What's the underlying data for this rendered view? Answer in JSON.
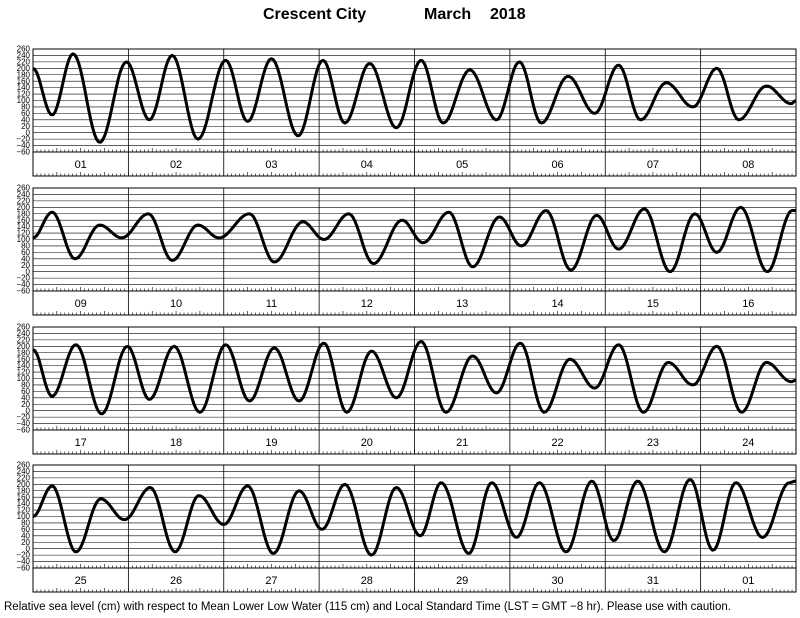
{
  "title": {
    "location": "Crescent City",
    "month": "March",
    "year": "2018"
  },
  "caption": "Relative sea level (cm) with respect to Mean Lower Low Water (115 cm) and Local Standard Time (LST = GMT −8 hr). Please use with caution.",
  "chart_data": {
    "type": "line",
    "ylim": [
      -60,
      260
    ],
    "y_ticks": [
      -60,
      -40,
      -20,
      0,
      20,
      40,
      60,
      80,
      100,
      120,
      140,
      160,
      180,
      200,
      220,
      240,
      260
    ],
    "y_tick_labels": [
      "−60",
      "−40",
      "−20",
      "0",
      "20",
      "40",
      "60",
      "80",
      "100",
      "120",
      "140",
      "160",
      "180",
      "200",
      "220",
      "240",
      "260"
    ],
    "panels": [
      {
        "day_labels": [
          "01",
          "02",
          "03",
          "04",
          "05",
          "06",
          "07",
          "08"
        ],
        "extrema": [
          [
            0.0,
            200
          ],
          [
            0.2,
            55
          ],
          [
            0.42,
            245
          ],
          [
            0.7,
            -30
          ],
          [
            0.98,
            220
          ],
          [
            1.22,
            40
          ],
          [
            1.46,
            240
          ],
          [
            1.73,
            -20
          ],
          [
            2.02,
            225
          ],
          [
            2.25,
            35
          ],
          [
            2.5,
            230
          ],
          [
            2.78,
            -10
          ],
          [
            3.04,
            225
          ],
          [
            3.27,
            30
          ],
          [
            3.53,
            215
          ],
          [
            3.81,
            15
          ],
          [
            4.07,
            225
          ],
          [
            4.3,
            30
          ],
          [
            4.58,
            195
          ],
          [
            4.86,
            40
          ],
          [
            5.1,
            220
          ],
          [
            5.33,
            30
          ],
          [
            5.61,
            175
          ],
          [
            5.89,
            60
          ],
          [
            6.14,
            210
          ],
          [
            6.37,
            40
          ],
          [
            6.64,
            155
          ],
          [
            6.92,
            80
          ],
          [
            7.17,
            200
          ],
          [
            7.4,
            40
          ],
          [
            7.69,
            145
          ],
          [
            7.95,
            90
          ],
          [
            8.0,
            100
          ]
        ]
      },
      {
        "day_labels": [
          "09",
          "10",
          "11",
          "12",
          "13",
          "14",
          "15",
          "16"
        ],
        "extrema": [
          [
            0.0,
            105
          ],
          [
            0.2,
            185
          ],
          [
            0.44,
            40
          ],
          [
            0.7,
            145
          ],
          [
            0.93,
            105
          ],
          [
            1.21,
            180
          ],
          [
            1.46,
            35
          ],
          [
            1.73,
            145
          ],
          [
            1.95,
            105
          ],
          [
            2.27,
            180
          ],
          [
            2.53,
            30
          ],
          [
            2.83,
            155
          ],
          [
            3.05,
            100
          ],
          [
            3.31,
            180
          ],
          [
            3.57,
            25
          ],
          [
            3.87,
            160
          ],
          [
            4.09,
            90
          ],
          [
            4.36,
            185
          ],
          [
            4.61,
            15
          ],
          [
            4.89,
            170
          ],
          [
            5.12,
            80
          ],
          [
            5.38,
            190
          ],
          [
            5.64,
            5
          ],
          [
            5.91,
            175
          ],
          [
            6.14,
            70
          ],
          [
            6.41,
            195
          ],
          [
            6.68,
            0
          ],
          [
            6.94,
            180
          ],
          [
            7.17,
            60
          ],
          [
            7.42,
            200
          ],
          [
            7.7,
            0
          ],
          [
            7.96,
            190
          ],
          [
            8.0,
            190
          ]
        ]
      },
      {
        "day_labels": [
          "17",
          "18",
          "19",
          "20",
          "21",
          "22",
          "23",
          "24"
        ],
        "extrema": [
          [
            0.0,
            190
          ],
          [
            0.2,
            45
          ],
          [
            0.45,
            205
          ],
          [
            0.72,
            -10
          ],
          [
            0.99,
            200
          ],
          [
            1.22,
            35
          ],
          [
            1.48,
            200
          ],
          [
            1.75,
            -5
          ],
          [
            2.02,
            205
          ],
          [
            2.27,
            30
          ],
          [
            2.53,
            195
          ],
          [
            2.79,
            30
          ],
          [
            3.05,
            210
          ],
          [
            3.29,
            -5
          ],
          [
            3.55,
            185
          ],
          [
            3.81,
            40
          ],
          [
            4.07,
            215
          ],
          [
            4.33,
            -5
          ],
          [
            4.61,
            170
          ],
          [
            4.86,
            55
          ],
          [
            5.11,
            210
          ],
          [
            5.36,
            -5
          ],
          [
            5.63,
            160
          ],
          [
            5.89,
            70
          ],
          [
            6.14,
            205
          ],
          [
            6.4,
            -5
          ],
          [
            6.66,
            150
          ],
          [
            6.92,
            80
          ],
          [
            7.17,
            200
          ],
          [
            7.43,
            -5
          ],
          [
            7.69,
            150
          ],
          [
            7.95,
            90
          ],
          [
            8.0,
            95
          ]
        ]
      },
      {
        "day_labels": [
          "25",
          "26",
          "27",
          "28",
          "29",
          "30",
          "31",
          "01"
        ],
        "extrema": [
          [
            0.0,
            100
          ],
          [
            0.2,
            195
          ],
          [
            0.45,
            -10
          ],
          [
            0.71,
            155
          ],
          [
            0.96,
            90
          ],
          [
            1.23,
            190
          ],
          [
            1.49,
            -10
          ],
          [
            1.74,
            165
          ],
          [
            2.0,
            75
          ],
          [
            2.25,
            195
          ],
          [
            2.52,
            -15
          ],
          [
            2.79,
            180
          ],
          [
            3.03,
            60
          ],
          [
            3.27,
            200
          ],
          [
            3.55,
            -20
          ],
          [
            3.81,
            190
          ],
          [
            4.06,
            40
          ],
          [
            4.28,
            205
          ],
          [
            4.57,
            -15
          ],
          [
            4.81,
            205
          ],
          [
            5.07,
            35
          ],
          [
            5.31,
            205
          ],
          [
            5.59,
            -10
          ],
          [
            5.86,
            210
          ],
          [
            6.09,
            25
          ],
          [
            6.34,
            210
          ],
          [
            6.62,
            -10
          ],
          [
            6.89,
            215
          ],
          [
            7.13,
            -5
          ],
          [
            7.37,
            205
          ],
          [
            7.65,
            35
          ],
          [
            7.93,
            205
          ],
          [
            8.0,
            210
          ]
        ]
      }
    ]
  }
}
